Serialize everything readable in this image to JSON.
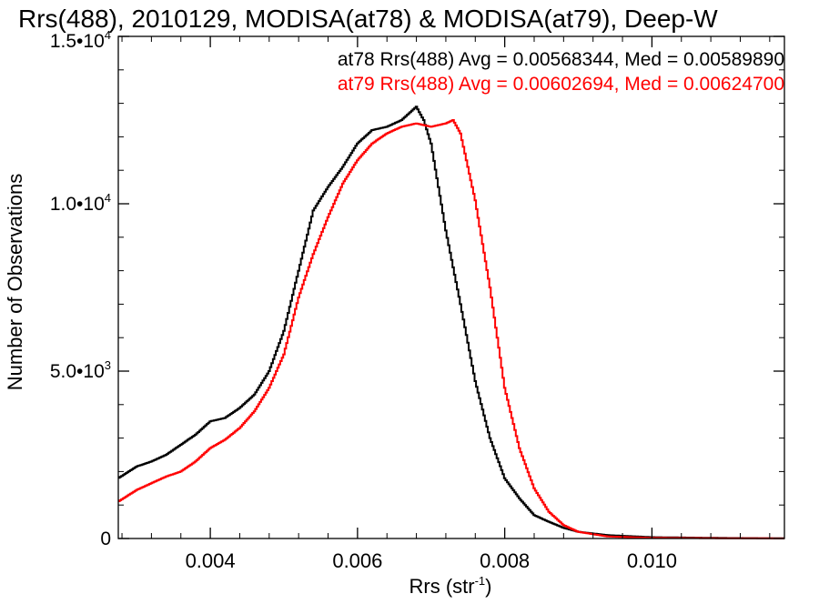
{
  "chart_data": {
    "type": "line",
    "step": true,
    "title": "Rrs(488), 2010129, MODISA(at78) & MODISA(at79), Deep-W",
    "xlabel": "Rrs (str",
    "xlabel_sup": "-1",
    "xlabel_close": ")",
    "ylabel": "Number of Observations",
    "xlim": [
      0.00275,
      0.0118
    ],
    "ylim": [
      0,
      15000
    ],
    "xticks": [
      0.004,
      0.006,
      0.008,
      0.01
    ],
    "xtick_labels": [
      "0.004",
      "0.006",
      "0.008",
      "0.010"
    ],
    "yticks": [
      0,
      5000,
      10000,
      15000
    ],
    "ytick_labels": [
      {
        "mant": "0",
        "exp": ""
      },
      {
        "mant": "5.0•10",
        "exp": "3"
      },
      {
        "mant": "1.0•10",
        "exp": "4"
      },
      {
        "mant": "1.5•10",
        "exp": "4"
      }
    ],
    "annotations": [
      {
        "text": "at78 Rrs(488) Avg = 0.00568344, Med = 0.00589890",
        "color": "#000000"
      },
      {
        "text": "at79 Rrs(488) Avg = 0.00602694, Med = 0.00624700",
        "color": "#ff0000"
      }
    ],
    "grid": false,
    "series": [
      {
        "color": "#000000",
        "x": [
          0.00275,
          0.003,
          0.0032,
          0.0034,
          0.0036,
          0.0038,
          0.004,
          0.0042,
          0.0044,
          0.0046,
          0.0048,
          0.005,
          0.0052,
          0.0054,
          0.0056,
          0.0058,
          0.006,
          0.0062,
          0.0064,
          0.0066,
          0.0068,
          0.0069,
          0.007,
          0.0072,
          0.0074,
          0.0076,
          0.0078,
          0.008,
          0.0082,
          0.0084,
          0.0086,
          0.0088,
          0.009,
          0.0094,
          0.01,
          0.011,
          0.0118
        ],
        "y": [
          1800,
          2150,
          2300,
          2500,
          2800,
          3100,
          3500,
          3600,
          3900,
          4300,
          5000,
          6200,
          8000,
          9800,
          10500,
          11100,
          11800,
          12200,
          12300,
          12500,
          12900,
          12500,
          11800,
          9200,
          7000,
          4700,
          3000,
          1800,
          1200,
          700,
          500,
          320,
          200,
          100,
          40,
          15,
          5
        ]
      },
      {
        "color": "#ff0000",
        "x": [
          0.00275,
          0.003,
          0.0032,
          0.0034,
          0.0036,
          0.0038,
          0.004,
          0.0042,
          0.0044,
          0.0046,
          0.0048,
          0.005,
          0.0052,
          0.0054,
          0.0056,
          0.0058,
          0.006,
          0.0062,
          0.0064,
          0.0066,
          0.0068,
          0.007,
          0.0072,
          0.0073,
          0.0074,
          0.0076,
          0.0078,
          0.008,
          0.0082,
          0.0084,
          0.0086,
          0.0088,
          0.009,
          0.0094,
          0.01,
          0.011,
          0.0118
        ],
        "y": [
          1100,
          1450,
          1650,
          1850,
          2000,
          2300,
          2700,
          2950,
          3300,
          3800,
          4500,
          5500,
          7200,
          8500,
          9600,
          10600,
          11300,
          11800,
          12100,
          12300,
          12400,
          12300,
          12400,
          12500,
          12100,
          10100,
          7500,
          4500,
          2700,
          1500,
          800,
          400,
          200,
          60,
          20,
          8,
          3
        ]
      }
    ]
  }
}
